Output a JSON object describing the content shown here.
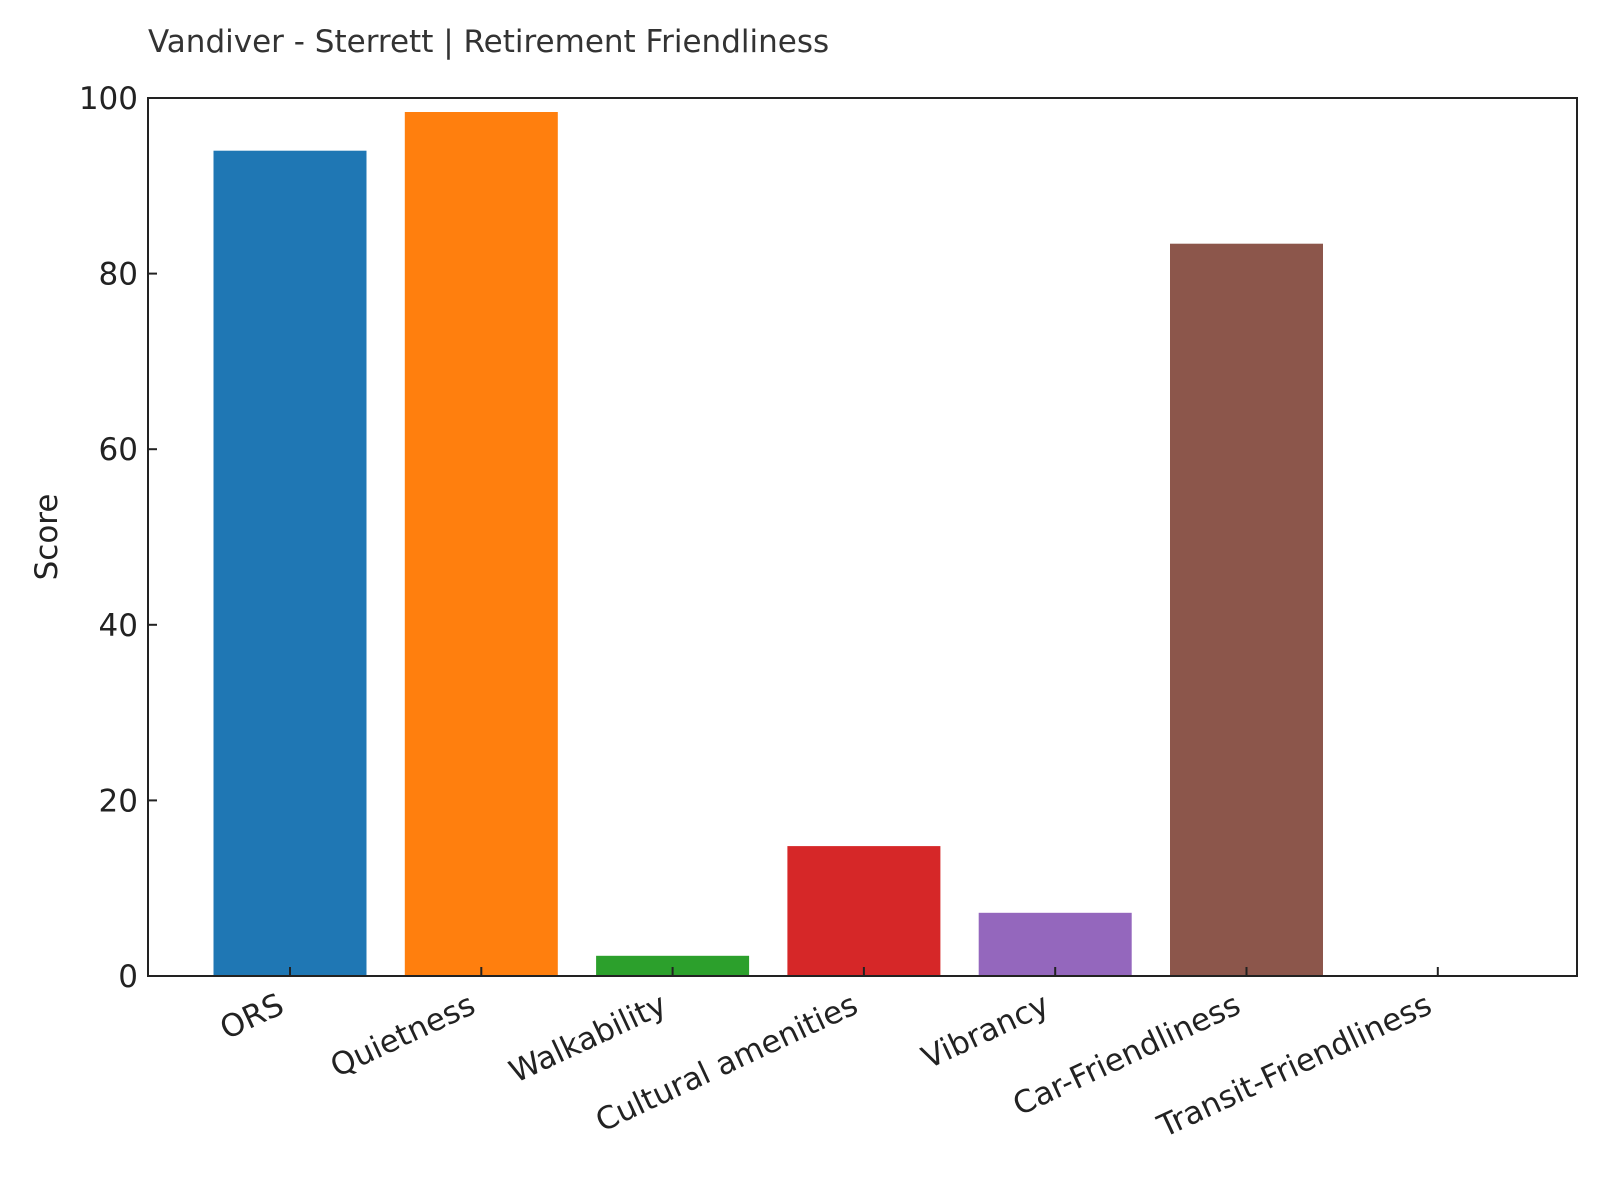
{
  "chart_data": {
    "type": "bar",
    "title": "Vandiver - Sterrett | Retirement Friendliness",
    "xlabel": "",
    "ylabel": "Score",
    "ylim": [
      0,
      100
    ],
    "yticks": [
      0,
      20,
      40,
      60,
      80,
      100
    ],
    "categories": [
      "ORS",
      "Quietness",
      "Walkability",
      "Cultural amenities",
      "Vibrancy",
      "Car-Friendliness",
      "Transit-Friendliness"
    ],
    "values": [
      94,
      98.4,
      2.3,
      14.8,
      7.2,
      83.4,
      0
    ],
    "colors": [
      "#1f77b4",
      "#ff7f0e",
      "#2ca02c",
      "#d62728",
      "#9467bd",
      "#8c564b",
      "#e377c2"
    ],
    "grid": false,
    "legend": "none"
  }
}
